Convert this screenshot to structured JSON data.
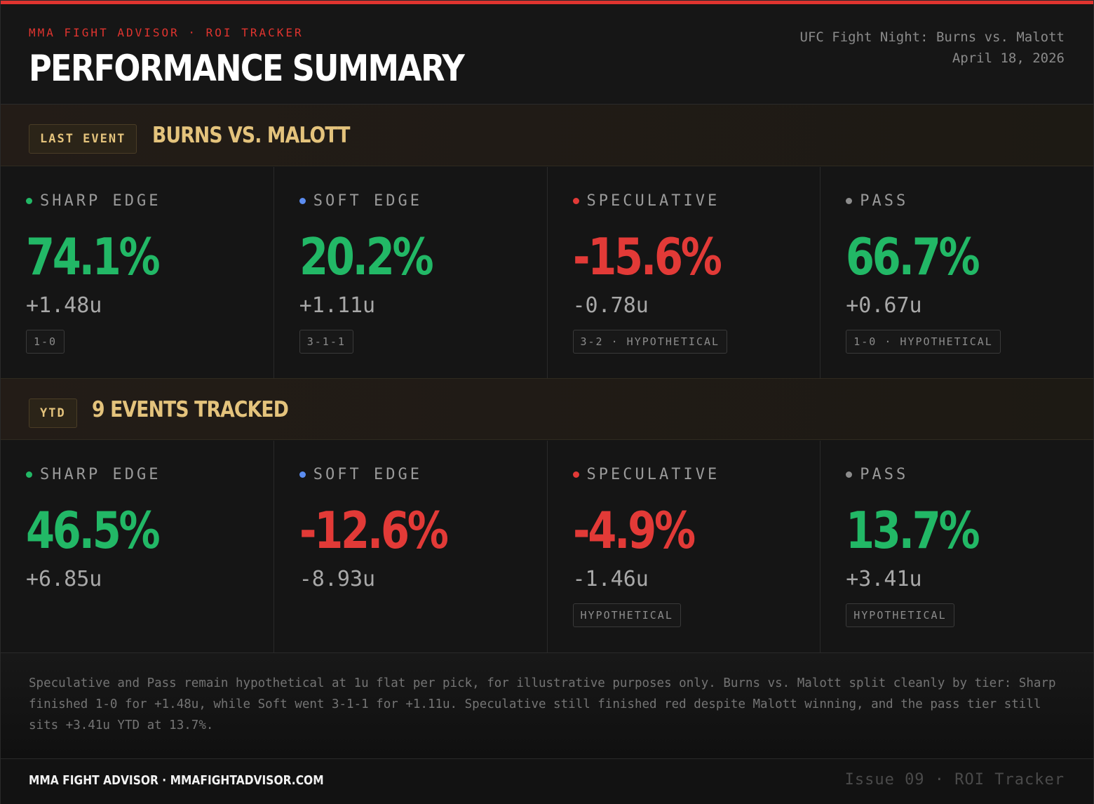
{
  "header": {
    "kicker": "MMA FIGHT ADVISOR · ROI TRACKER",
    "title": "PERFORMANCE SUMMARY",
    "event_name": "UFC Fight Night: Burns vs. Malott",
    "event_date": "April 18, 2026"
  },
  "colors": {
    "accent_red": "#e0342f",
    "positive": "#22b866",
    "negative": "#e23a37",
    "gold": "#e4c37c",
    "dot_sharp": "#22b866",
    "dot_soft": "#5b8cf0",
    "dot_spec": "#e23a37",
    "dot_pass": "#8c8c8c"
  },
  "last_event": {
    "badge": "LAST EVENT",
    "title": "BURNS VS. MALOTT",
    "tiers": [
      {
        "label": "SHARP EDGE",
        "pct": "74.1%",
        "units": "+1.48u",
        "tag": "1-0",
        "sign": "pos",
        "dot": "sharp"
      },
      {
        "label": "SOFT EDGE",
        "pct": "20.2%",
        "units": "+1.11u",
        "tag": "3-1-1",
        "sign": "pos",
        "dot": "soft"
      },
      {
        "label": "SPECULATIVE",
        "pct": "-15.6%",
        "units": "-0.78u",
        "tag": "3-2 · HYPOTHETICAL",
        "sign": "neg",
        "dot": "spec"
      },
      {
        "label": "PASS",
        "pct": "66.7%",
        "units": "+0.67u",
        "tag": "1-0 · HYPOTHETICAL",
        "sign": "pos",
        "dot": "pass"
      }
    ]
  },
  "ytd": {
    "badge": "YTD",
    "title": "9 EVENTS TRACKED",
    "tiers": [
      {
        "label": "SHARP EDGE",
        "pct": "46.5%",
        "units": "+6.85u",
        "tag": "",
        "sign": "pos",
        "dot": "sharp"
      },
      {
        "label": "SOFT EDGE",
        "pct": "-12.6%",
        "units": "-8.93u",
        "tag": "",
        "sign": "neg",
        "dot": "soft"
      },
      {
        "label": "SPECULATIVE",
        "pct": "-4.9%",
        "units": "-1.46u",
        "tag": "HYPOTHETICAL",
        "sign": "neg",
        "dot": "spec"
      },
      {
        "label": "PASS",
        "pct": "13.7%",
        "units": "+3.41u",
        "tag": "HYPOTHETICAL",
        "sign": "pos",
        "dot": "pass"
      }
    ]
  },
  "footnote": "Speculative and Pass remain hypothetical at 1u flat per pick, for illustrative purposes only. Burns vs. Malott split cleanly by tier: Sharp finished 1-0 for +1.48u, while Soft went 3-1-1 for +1.11u. Speculative still finished red despite Malott winning, and the pass tier still sits +3.41u YTD at 13.7%.",
  "footer": {
    "brand": "MMA FIGHT ADVISOR · MMAFIGHTADVISOR.COM",
    "issue": "Issue 09 · ROI Tracker"
  }
}
